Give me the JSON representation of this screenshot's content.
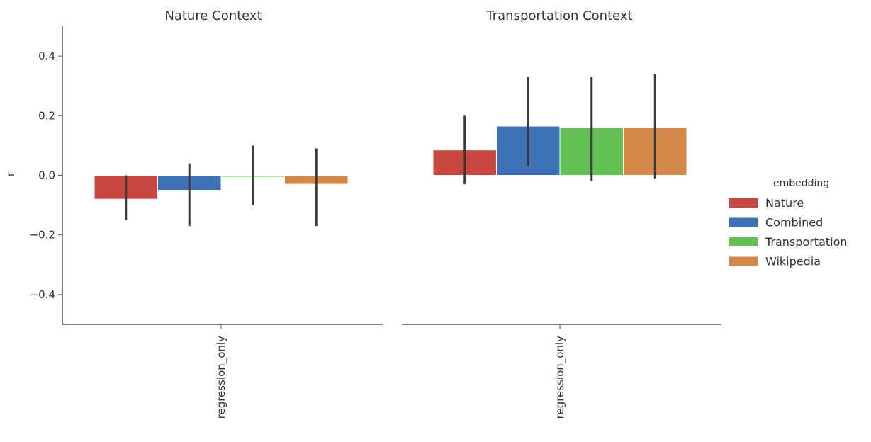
{
  "chart_data": {
    "type": "bar",
    "y_label": "r",
    "ylim": [
      -0.5,
      0.5
    ],
    "y_ticks": [
      {
        "value": 0.4,
        "label": "0.4"
      },
      {
        "value": 0.2,
        "label": "0.2"
      },
      {
        "value": 0.0,
        "label": "0.0"
      },
      {
        "value": -0.2,
        "label": "−0.2"
      },
      {
        "value": -0.4,
        "label": "−0.4"
      }
    ],
    "grid": false,
    "legend": {
      "title": "embedding",
      "placement": "right",
      "entries": [
        {
          "name": "Nature",
          "color": "#c8473e"
        },
        {
          "name": "Combined",
          "color": "#3e71b6"
        },
        {
          "name": "Transportation",
          "color": "#62c152"
        },
        {
          "name": "Wikipedia",
          "color": "#d4884a"
        }
      ]
    },
    "panels": [
      {
        "title": "Nature Context",
        "category": "regression_only",
        "bars": [
          {
            "series": "Nature",
            "value": -0.08,
            "ci": [
              -0.15,
              0.0
            ]
          },
          {
            "series": "Combined",
            "value": -0.05,
            "ci": [
              -0.17,
              0.04
            ]
          },
          {
            "series": "Transportation",
            "value": -0.005,
            "ci": [
              -0.1,
              0.1
            ]
          },
          {
            "series": "Wikipedia",
            "value": -0.03,
            "ci": [
              -0.17,
              0.09
            ]
          }
        ]
      },
      {
        "title": "Transportation Context",
        "category": "regression_only",
        "bars": [
          {
            "series": "Nature",
            "value": 0.085,
            "ci": [
              -0.03,
              0.2
            ]
          },
          {
            "series": "Combined",
            "value": 0.165,
            "ci": [
              0.03,
              0.33
            ]
          },
          {
            "series": "Transportation",
            "value": 0.16,
            "ci": [
              -0.02,
              0.33
            ]
          },
          {
            "series": "Wikipedia",
            "value": 0.16,
            "ci": [
              -0.01,
              0.34
            ]
          }
        ]
      }
    ]
  }
}
